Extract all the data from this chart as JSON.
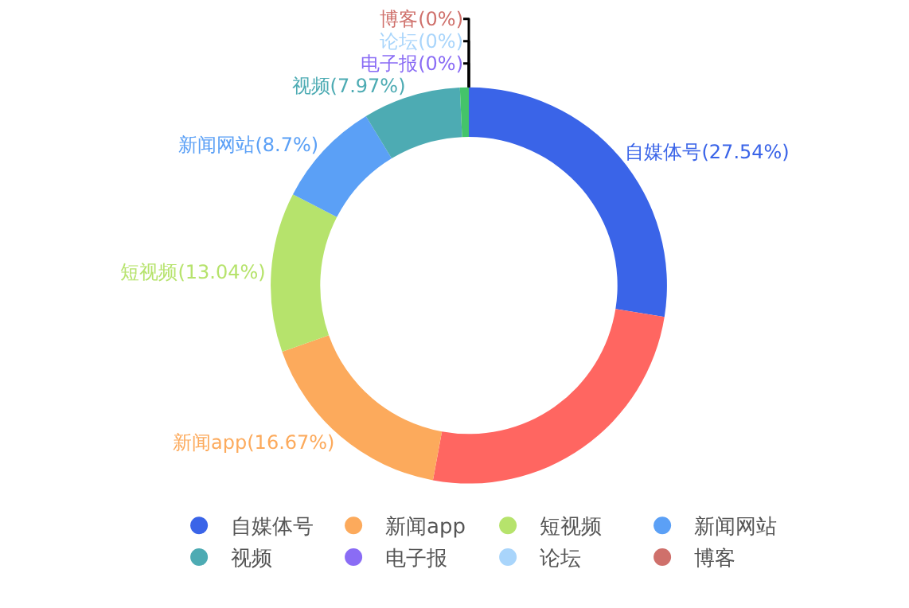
{
  "chart_data": {
    "type": "donut",
    "categories": [
      "自媒体号",
      null,
      "新闻app",
      "短视频",
      "新闻网站",
      "视频",
      null,
      "电子报",
      "论坛",
      "博客"
    ],
    "values": [
      27.54,
      25.36,
      16.67,
      13.04,
      8.7,
      7.97,
      0.72,
      0,
      0,
      0
    ],
    "value_labels": [
      "自媒体号(27.54%)",
      null,
      "新闻app(16.67%)",
      "短视频(13.04%)",
      "新闻网站(8.7%)",
      "视频(7.97%)",
      null,
      "电子报(0%)",
      "论坛(0%)",
      "博客(0%)"
    ],
    "colors": [
      "#3a64e8",
      "#ff6661",
      "#fcaa5c",
      "#b6e36c",
      "#5ba0f6",
      "#4dabb3",
      "#44c46a",
      "#8a6cf5",
      "#a9d5fb",
      "#cf706b"
    ],
    "legend": "bottom"
  }
}
